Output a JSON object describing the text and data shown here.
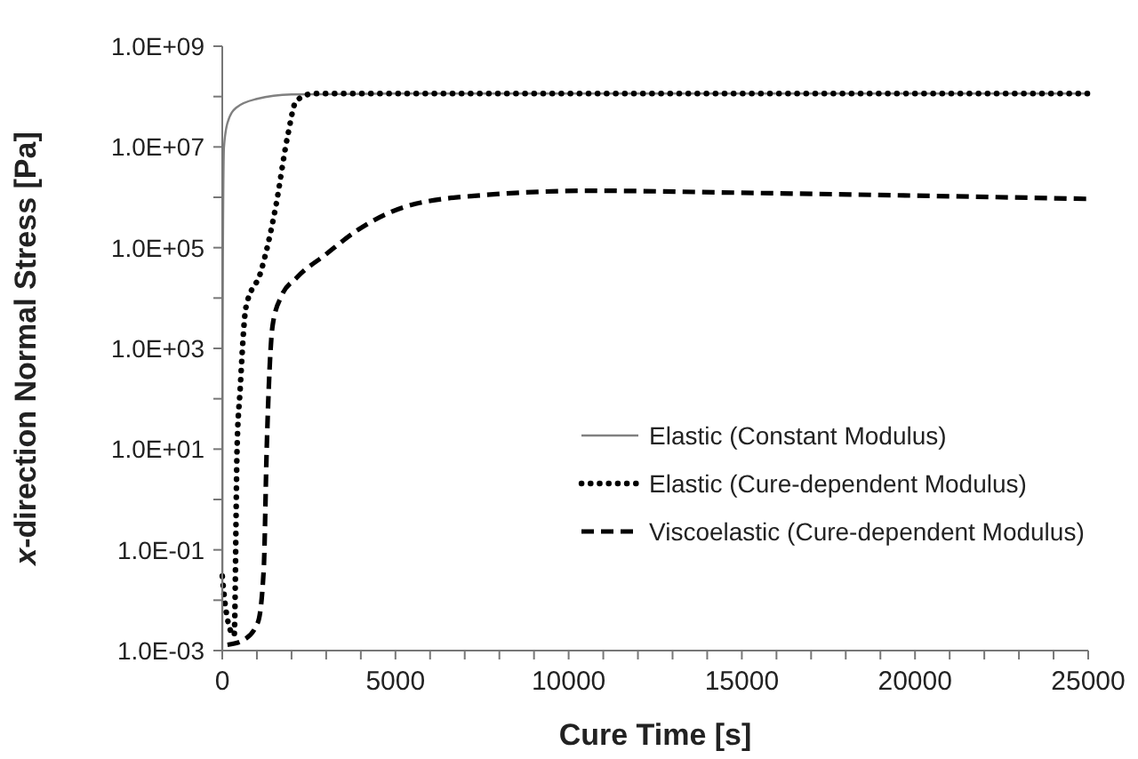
{
  "chart_data": {
    "type": "line",
    "xlabel": "Cure Time [s]",
    "ylabel": "x-direction Normal Stress [Pa]",
    "log": "y",
    "grid": false,
    "legend": "right",
    "marker": "none",
    "xlim": [
      0,
      25000
    ],
    "xticks": [
      0,
      {
        "value": 1000,
        "label": null
      },
      {
        "value": 2000,
        "label": null
      },
      {
        "value": 3000,
        "label": null
      },
      {
        "value": 4000,
        "label": null
      },
      5000,
      {
        "value": 6000,
        "label": null
      },
      {
        "value": 7000,
        "label": null
      },
      {
        "value": 8000,
        "label": null
      },
      {
        "value": 9000,
        "label": null
      },
      10000,
      {
        "value": 11000,
        "label": null
      },
      {
        "value": 12000,
        "label": null
      },
      {
        "value": 13000,
        "label": null
      },
      {
        "value": 14000,
        "label": null
      },
      15000,
      {
        "value": 16000,
        "label": null
      },
      {
        "value": 17000,
        "label": null
      },
      {
        "value": 18000,
        "label": null
      },
      {
        "value": 19000,
        "label": null
      },
      20000,
      {
        "value": 21000,
        "label": null
      },
      {
        "value": 22000,
        "label": null
      },
      {
        "value": 23000,
        "label": null
      },
      {
        "value": 24000,
        "label": null
      },
      25000
    ],
    "ylim": [
      0.001,
      1000000000
    ],
    "yticks": [
      {
        "value": 0.001,
        "label": "1.0E-03"
      },
      {
        "value": 0.01,
        "label": null
      },
      {
        "value": 0.1,
        "label": "1.0E-01"
      },
      {
        "value": 1,
        "label": null
      },
      {
        "value": 10,
        "label": "1.0E+01"
      },
      {
        "value": 100,
        "label": null
      },
      {
        "value": 1000,
        "label": "1.0E+03"
      },
      {
        "value": 10000,
        "label": null
      },
      {
        "value": 100000,
        "label": "1.0E+05"
      },
      {
        "value": 1000000,
        "label": null
      },
      {
        "value": 10000000,
        "label": "1.0E+07"
      },
      {
        "value": 100000000,
        "label": null
      },
      {
        "value": 1000000000,
        "label": "1.0E+09"
      }
    ],
    "series": [
      {
        "name": "Elastic (Constant Modulus)",
        "color": "#808080",
        "line_style": "solid",
        "x": [
          0,
          10,
          20,
          50,
          150,
          400,
          1000,
          2000,
          5000,
          25000
        ],
        "values": [
          0.001,
          1000,
          100000,
          10000000,
          30000000,
          60000000,
          90000000,
          110000000,
          115000000,
          115000000
        ]
      },
      {
        "name": "Elastic (Cure-dependent Modulus)",
        "color": "#000000",
        "line_style": "dotted",
        "x": [
          0,
          87,
          200,
          344,
          427,
          513,
          683,
          1113,
          1540,
          1884,
          2140,
          2654,
          5000,
          10000,
          25000
        ],
        "values": [
          0.03,
          0.008,
          0.003,
          0.002,
          10,
          140,
          6500,
          33000,
          630000,
          16000000,
          83000000,
          115000000,
          115000000,
          115000000,
          115000000
        ]
      },
      {
        "name": "Viscoelastic (Cure-dependent Modulus)",
        "color": "#000000",
        "line_style": "dashed",
        "x": [
          150,
          600,
          1027,
          1198,
          1283,
          1455,
          1711,
          2140,
          2995,
          3850,
          5220,
          7274,
          10700,
          15000,
          20000,
          25000
        ],
        "values": [
          0.0013,
          0.0016,
          0.0036,
          0.042,
          10,
          2900,
          11000,
          25000,
          74000,
          210000,
          630000,
          1070000,
          1350000,
          1230000,
          1080000,
          930000
        ]
      }
    ]
  }
}
